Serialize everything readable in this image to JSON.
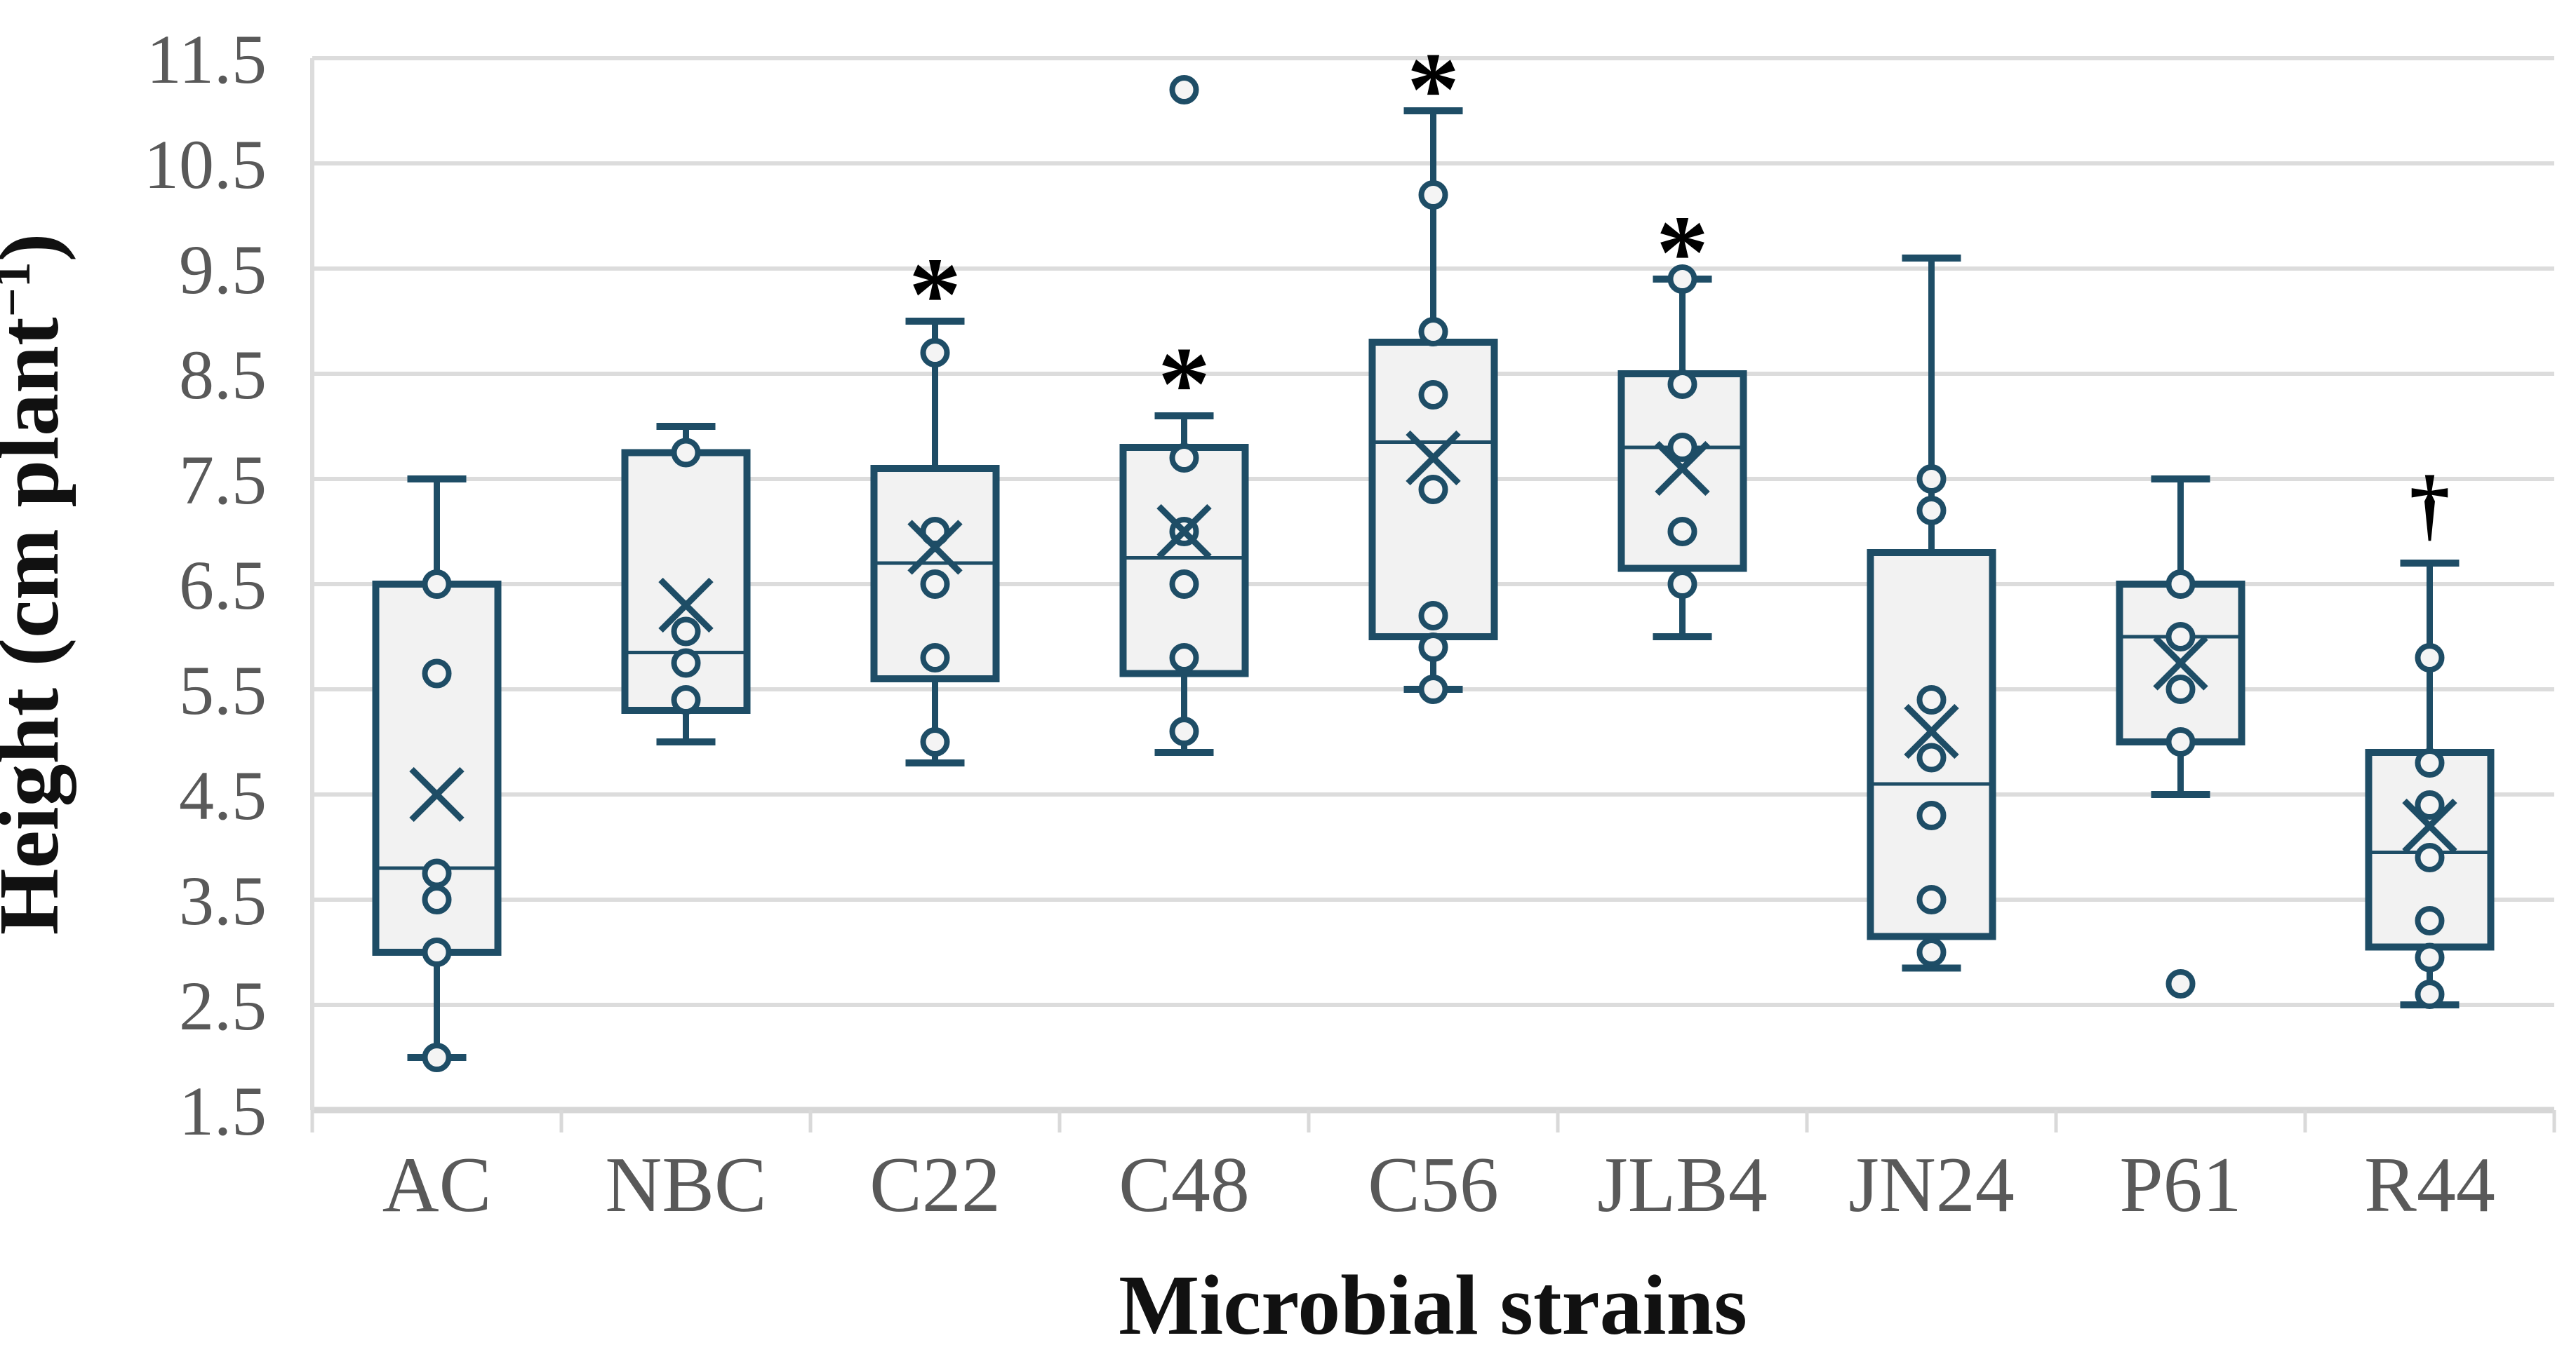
{
  "chart_data": {
    "type": "box",
    "title": "",
    "xlabel": "Microbial strains",
    "ylabel": "Height (cm plant⁻¹)",
    "ylabel_parts": {
      "main": "Height (cm plant",
      "sup": "−1",
      "close": ")"
    },
    "ylim": [
      1.5,
      11.5
    ],
    "y_ticks": [
      1.5,
      2.5,
      3.5,
      4.5,
      5.5,
      6.5,
      7.5,
      8.5,
      9.5,
      10.5,
      11.5
    ],
    "grid": "horizontal",
    "legend": "none",
    "categories": [
      "AC",
      "NBC",
      "C22",
      "C48",
      "C56",
      "JLB4",
      "JN24",
      "P61",
      "R44"
    ],
    "series": [
      {
        "label": "AC",
        "whisker_low": 2.0,
        "q1": 3.0,
        "median": 3.8,
        "q3": 6.5,
        "whisker_high": 7.5,
        "mean": 4.5,
        "points": [
          6.5,
          5.65,
          3.75,
          3.5,
          3.0,
          2.0
        ],
        "annotation": null,
        "annotation_y": null
      },
      {
        "label": "NBC",
        "whisker_low": 5.0,
        "q1": 5.3,
        "median": 5.85,
        "q3": 7.75,
        "whisker_high": 8.0,
        "mean": 6.3,
        "points": [
          7.75,
          6.05,
          5.75,
          5.4
        ],
        "annotation": null,
        "annotation_y": null
      },
      {
        "label": "C22",
        "whisker_low": 4.8,
        "q1": 5.6,
        "median": 6.7,
        "q3": 7.6,
        "whisker_high": 9.0,
        "mean": 6.85,
        "points": [
          8.7,
          7.0,
          6.5,
          5.8,
          5.0
        ],
        "annotation": "*",
        "annotation_y": 9.4
      },
      {
        "label": "C48",
        "whisker_low": 4.9,
        "q1": 5.65,
        "median": 6.75,
        "q3": 7.8,
        "whisker_high": 8.1,
        "mean": 7.0,
        "points": [
          11.2,
          7.7,
          7.0,
          6.5,
          5.8,
          5.1
        ],
        "annotation": "*",
        "annotation_y": 8.55
      },
      {
        "label": "C56",
        "whisker_low": 5.5,
        "q1": 6.0,
        "median": 7.85,
        "q3": 8.8,
        "whisker_high": 11.0,
        "mean": 7.7,
        "points": [
          10.2,
          8.9,
          8.3,
          7.4,
          6.2,
          5.9,
          5.5
        ],
        "annotation": "*",
        "annotation_y": 11.35
      },
      {
        "label": "JLB4",
        "whisker_low": 6.0,
        "q1": 6.65,
        "median": 7.8,
        "q3": 8.5,
        "whisker_high": 9.4,
        "mean": 7.6,
        "points": [
          9.4,
          8.4,
          7.8,
          7.0,
          6.5
        ],
        "annotation": "*",
        "annotation_y": 9.8
      },
      {
        "label": "JN24",
        "whisker_low": 2.85,
        "q1": 3.15,
        "median": 4.6,
        "q3": 6.8,
        "whisker_high": 9.6,
        "mean": 5.1,
        "points": [
          7.5,
          7.2,
          5.4,
          4.85,
          4.3,
          3.5,
          3.0
        ],
        "annotation": null,
        "annotation_y": null
      },
      {
        "label": "P61",
        "whisker_low": 4.5,
        "q1": 5.0,
        "median": 6.0,
        "q3": 6.5,
        "whisker_high": 7.5,
        "mean": 5.75,
        "points": [
          6.5,
          6.0,
          5.5,
          5.0,
          2.7
        ],
        "annotation": null,
        "annotation_y": null
      },
      {
        "label": "R44",
        "whisker_low": 2.5,
        "q1": 3.05,
        "median": 3.95,
        "q3": 4.9,
        "whisker_high": 6.7,
        "mean": 4.2,
        "points": [
          5.8,
          4.8,
          4.4,
          3.9,
          3.3,
          2.95,
          2.6
        ],
        "annotation": "†",
        "annotation_y": 7.3
      }
    ],
    "colors": {
      "box_stroke": "#1E4D66",
      "box_fill": "#F2F2F2",
      "marker_fill": "#F4F4F4",
      "grid": "#DCDCDC",
      "axis_line": "#D6D6D6",
      "tick": "#D9D9D9",
      "tick_label": "#595959",
      "title_text": "#111111",
      "annotation": "#000000"
    }
  }
}
